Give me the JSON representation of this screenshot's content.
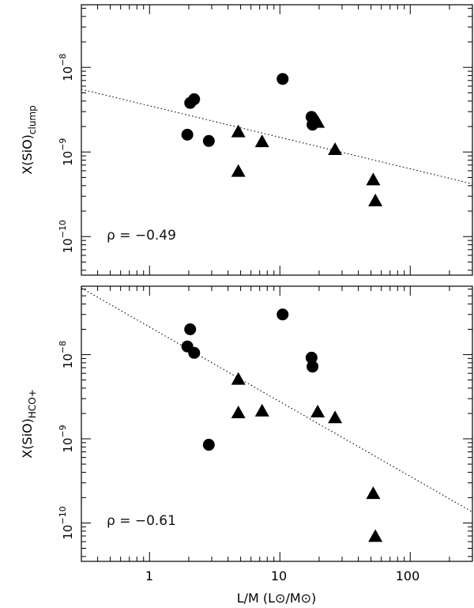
{
  "chart_data": [
    {
      "type": "scatter",
      "ylabel": "X(SiO)",
      "ylabel_subscript": "clump",
      "x_scale": "log",
      "y_scale": "log",
      "xlim": [
        0.3,
        300
      ],
      "ylim": [
        3.5e-11,
        5.5e-08
      ],
      "annotation": "ρ = −0.49",
      "fit_line": {
        "x": [
          0.3,
          300
        ],
        "y": [
          5.5e-09,
          4.2e-10
        ]
      },
      "series": [
        {
          "marker": "circle",
          "x": [
            1.95,
            2.05,
            2.2,
            2.85,
            10.5,
            17.5,
            17.8
          ],
          "y": [
            1.6e-09,
            3.8e-09,
            4.2e-09,
            1.35e-09,
            7.3e-09,
            2.6e-09,
            2.1e-09
          ]
        },
        {
          "marker": "triangle",
          "x": [
            4.8,
            4.8,
            7.3,
            19.5,
            26.5,
            52,
            54
          ],
          "y": [
            1.7e-09,
            5.8e-10,
            1.3e-09,
            2.2e-09,
            1.05e-09,
            4.6e-10,
            2.6e-10
          ]
        }
      ]
    },
    {
      "type": "scatter",
      "ylabel": "X(SiO)",
      "ylabel_subscript": "HCO+",
      "xlabel": "L/M (L⊙/M⊙)",
      "x_scale": "log",
      "y_scale": "log",
      "xlim": [
        0.3,
        300
      ],
      "ylim": [
        3.5e-11,
        6.5e-08
      ],
      "annotation": "ρ = −0.61",
      "x_ticks": [
        "1",
        "10",
        "100"
      ],
      "fit_line": {
        "x": [
          0.3,
          300
        ],
        "y": [
          6.2e-08,
          1.35e-10
        ]
      },
      "series": [
        {
          "marker": "circle",
          "x": [
            1.95,
            2.05,
            2.2,
            2.85,
            10.5,
            17.5,
            17.8
          ],
          "y": [
            1.25e-08,
            2e-08,
            1.05e-08,
            8.5e-10,
            3e-08,
            9.2e-09,
            7.2e-09
          ]
        },
        {
          "marker": "triangle",
          "x": [
            4.8,
            4.8,
            7.3,
            19.5,
            26.5,
            52,
            54
          ],
          "y": [
            5e-09,
            2e-09,
            2.1e-09,
            2.05e-09,
            1.75e-09,
            2.2e-10,
            6.8e-11
          ]
        }
      ]
    }
  ]
}
